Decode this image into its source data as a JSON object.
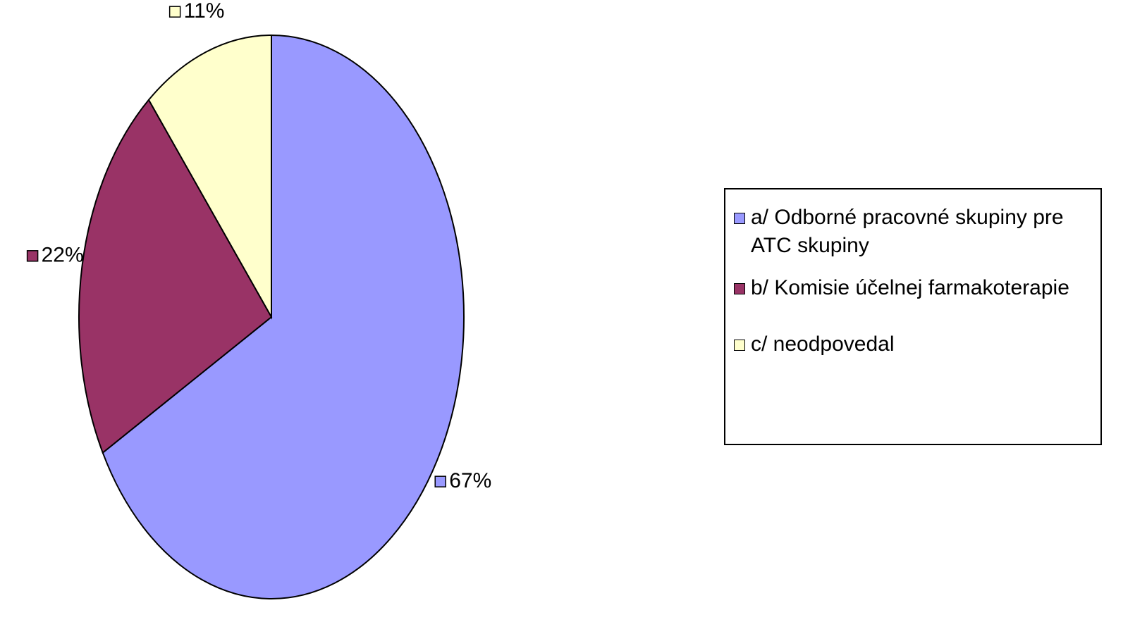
{
  "chart_data": {
    "type": "pie",
    "categories": [
      "a/ Odborné pracovné skupiny pre ATC skupiny",
      "b/ Komisie účelnej farmakoterapie",
      "c/ neodpovedal"
    ],
    "values": [
      67,
      22,
      11
    ],
    "value_labels": [
      "67%",
      "22%",
      "11%"
    ],
    "colors": [
      "#9999ff",
      "#993366",
      "#ffffcc"
    ],
    "legend": "right"
  }
}
